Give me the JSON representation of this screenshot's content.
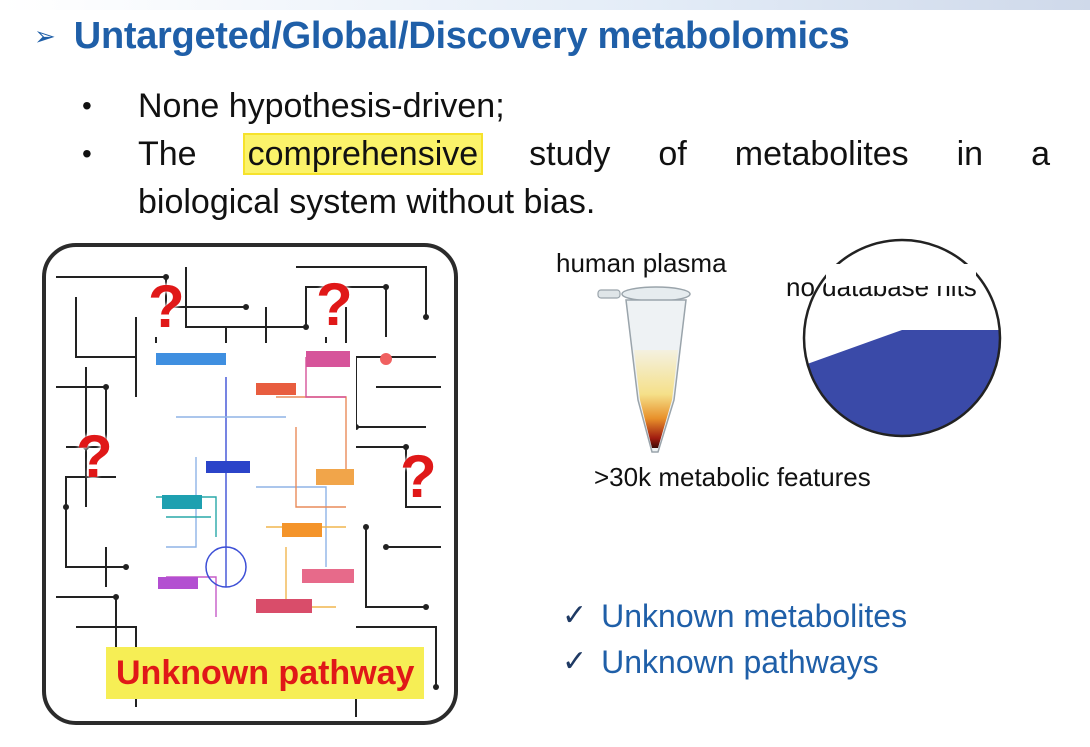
{
  "slide": {
    "title": "Untargeted/Global/Discovery metabolomics",
    "bullets": [
      "None hypothesis-driven;",
      "The",
      "comprehensive",
      "study of metabolites in a",
      "biological system without bias."
    ]
  },
  "figure": {
    "question_mark": "?",
    "unknown_pathway_label": "Unknown pathway",
    "sample_label": "human plasma",
    "no_hits_label": "no database hits",
    "features_label": ">30k metabolic features",
    "checklist": [
      {
        "mark": "✓",
        "text": "Unknown metabolites"
      },
      {
        "mark": "✓",
        "text": "Unknown pathways"
      }
    ]
  },
  "colors": {
    "title": "#1f5fa8",
    "highlight": "#fbf36a",
    "question": "#e01818",
    "pie_fill": "#3a4aa8"
  }
}
